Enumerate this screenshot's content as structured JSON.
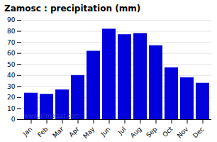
{
  "chart_data": {
    "type": "bar",
    "title": "Zamosc : precipitation (mm)",
    "categories": [
      "Jan",
      "Feb",
      "Mar",
      "Apr",
      "May",
      "Jun",
      "Jul",
      "Aug",
      "Sep",
      "Oct",
      "Nov",
      "Dec"
    ],
    "values": [
      24,
      23,
      27,
      40,
      62,
      82,
      77,
      78,
      67,
      47,
      38,
      33
    ],
    "color": "#0000dd",
    "ylim": [
      0,
      90
    ],
    "yticks": [
      0,
      10,
      20,
      30,
      40,
      50,
      60,
      70,
      80,
      90
    ],
    "grid": true,
    "annotations": [
      {
        "text": "www.allmetsat.com",
        "color": "#3333cc"
      }
    ]
  }
}
